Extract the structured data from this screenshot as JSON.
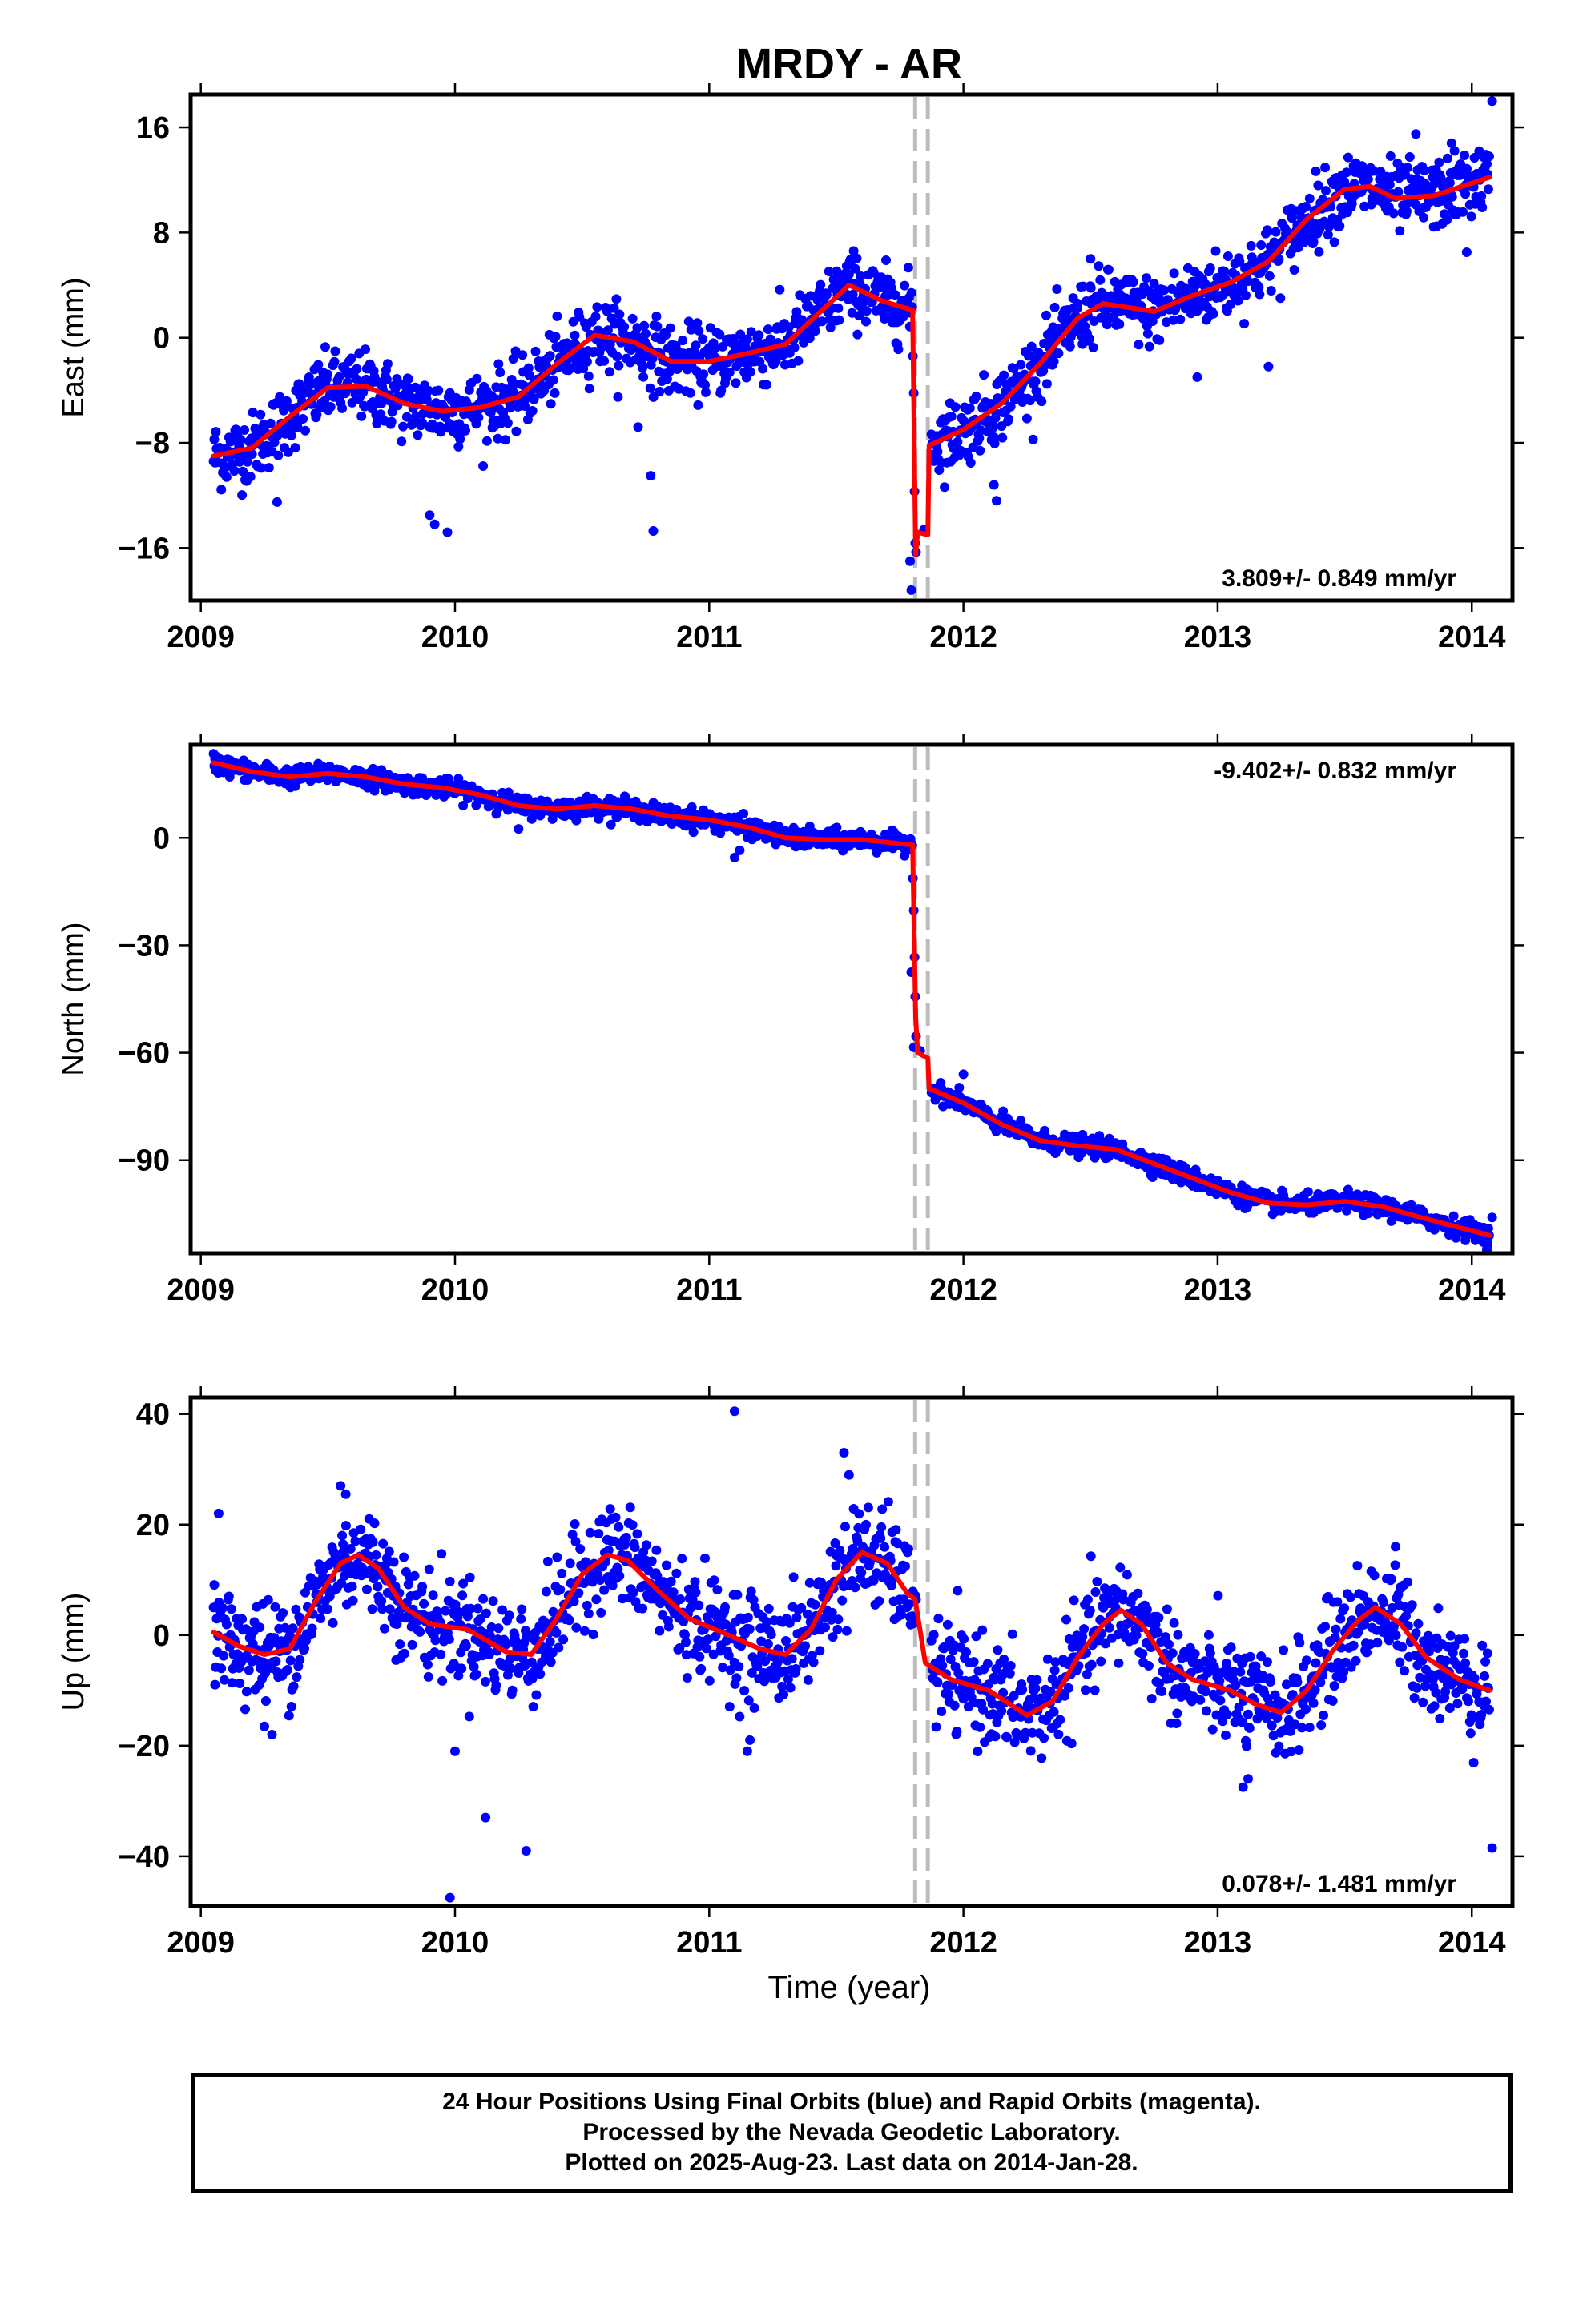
{
  "chart_data": {
    "type": "scatter",
    "title": "MRDY - AR",
    "xlabel": "Time (year)",
    "x_ticks": [
      2009,
      2010,
      2011,
      2012,
      2013,
      2014
    ],
    "xlim": [
      2008.96,
      2014.16
    ],
    "offsets": [
      2011.81,
      2011.86
    ],
    "last_data": 2014.07,
    "series_color": "#0000ff",
    "fit_color": "#ff0000",
    "offset_line_color": "#bdbdbd",
    "panels": [
      {
        "name": "East",
        "ylabel": "East (mm)",
        "ylim": [
          -20,
          18.5
        ],
        "y_ticks": [
          -16,
          -8,
          0,
          8,
          16
        ],
        "rate": "3.809+/- 0.849 mm/yr",
        "rate_position": "bottom-right",
        "noise": 1.3,
        "fit": [
          [
            2009.05,
            -9.0
          ],
          [
            2009.2,
            -8.4
          ],
          [
            2009.35,
            -6.0
          ],
          [
            2009.5,
            -3.8
          ],
          [
            2009.65,
            -3.7
          ],
          [
            2009.8,
            -5.0
          ],
          [
            2009.95,
            -5.6
          ],
          [
            2010.1,
            -5.3
          ],
          [
            2010.25,
            -4.5
          ],
          [
            2010.4,
            -2.0
          ],
          [
            2010.55,
            0.2
          ],
          [
            2010.7,
            -0.3
          ],
          [
            2010.85,
            -1.8
          ],
          [
            2011.0,
            -1.8
          ],
          [
            2011.15,
            -1.2
          ],
          [
            2011.3,
            -0.5
          ],
          [
            2011.45,
            2.2
          ],
          [
            2011.55,
            4.0
          ],
          [
            2011.68,
            2.8
          ],
          [
            2011.8,
            2.1
          ],
          [
            2011.812,
            -16.5
          ],
          [
            2011.82,
            -14.8
          ],
          [
            2011.86,
            -15.0
          ],
          [
            2011.865,
            -8.2
          ],
          [
            2012.0,
            -7.0
          ],
          [
            2012.15,
            -5.0
          ],
          [
            2012.3,
            -2.0
          ],
          [
            2012.45,
            1.5
          ],
          [
            2012.55,
            2.6
          ],
          [
            2012.75,
            2.0
          ],
          [
            2012.9,
            3.2
          ],
          [
            2013.05,
            4.2
          ],
          [
            2013.2,
            5.8
          ],
          [
            2013.35,
            9.0
          ],
          [
            2013.5,
            11.3
          ],
          [
            2013.6,
            11.5
          ],
          [
            2013.7,
            10.6
          ],
          [
            2013.85,
            10.8
          ],
          [
            2014.07,
            12.2
          ]
        ],
        "outliers": [
          [
            2009.3,
            -12.5
          ],
          [
            2009.9,
            -13.5
          ],
          [
            2009.92,
            -14.2
          ],
          [
            2009.97,
            -14.8
          ],
          [
            2010.77,
            -10.5
          ],
          [
            2010.78,
            -14.7
          ],
          [
            2010.72,
            -6.8
          ],
          [
            2011.79,
            -17.0
          ],
          [
            2011.795,
            -19.2
          ],
          [
            2011.845,
            -14.6
          ],
          [
            2012.12,
            -11.2
          ],
          [
            2012.13,
            -12.4
          ],
          [
            2013.2,
            -2.2
          ],
          [
            2012.92,
            -3.0
          ],
          [
            2014.08,
            18.0
          ],
          [
            2013.98,
            6.5
          ],
          [
            2013.92,
            14.8
          ],
          [
            2013.78,
            15.5
          ],
          [
            2012.5,
            6.0
          ]
        ]
      },
      {
        "name": "North",
        "ylabel": "North (mm)",
        "ylim": [
          -116,
          26
        ],
        "y_ticks": [
          -90,
          -60,
          -30,
          0
        ],
        "rate": "-9.402+/- 0.832 mm/yr",
        "rate_position": "top-right",
        "noise": 1.3,
        "fit": [
          [
            2009.05,
            21.0
          ],
          [
            2009.2,
            18.5
          ],
          [
            2009.35,
            17.0
          ],
          [
            2009.5,
            18.0
          ],
          [
            2009.65,
            17.0
          ],
          [
            2009.8,
            15.0
          ],
          [
            2009.95,
            14.0
          ],
          [
            2010.1,
            12.0
          ],
          [
            2010.25,
            9.0
          ],
          [
            2010.4,
            8.0
          ],
          [
            2010.55,
            9.0
          ],
          [
            2010.7,
            8.0
          ],
          [
            2010.85,
            6.0
          ],
          [
            2011.0,
            5.0
          ],
          [
            2011.15,
            3.0
          ],
          [
            2011.3,
            0.0
          ],
          [
            2011.45,
            -0.5
          ],
          [
            2011.6,
            -0.5
          ],
          [
            2011.8,
            -2.0
          ],
          [
            2011.812,
            -50.0
          ],
          [
            2011.82,
            -60.0
          ],
          [
            2011.86,
            -61.5
          ],
          [
            2011.865,
            -70.0
          ],
          [
            2012.0,
            -74.0
          ],
          [
            2012.15,
            -80.0
          ],
          [
            2012.3,
            -84.5
          ],
          [
            2012.45,
            -86.0
          ],
          [
            2012.6,
            -87.0
          ],
          [
            2012.75,
            -91.0
          ],
          [
            2012.9,
            -95.0
          ],
          [
            2013.05,
            -99.0
          ],
          [
            2013.2,
            -102.0
          ],
          [
            2013.35,
            -102.5
          ],
          [
            2013.5,
            -101.5
          ],
          [
            2013.65,
            -103.0
          ],
          [
            2013.8,
            -106.0
          ],
          [
            2014.07,
            -111.0
          ]
        ],
        "outliers": [
          [
            2011.795,
            -37.5
          ],
          [
            2011.805,
            -58.5
          ],
          [
            2011.83,
            -59.5
          ],
          [
            2010.25,
            2.5
          ],
          [
            2011.1,
            -5.5
          ],
          [
            2011.12,
            -3.5
          ],
          [
            2012.0,
            -66.0
          ],
          [
            2014.08,
            -106.0
          ],
          [
            2014.06,
            -114.0
          ]
        ]
      },
      {
        "name": "Up",
        "ylabel": "Up (mm)",
        "ylim": [
          -49,
          43
        ],
        "y_ticks": [
          -40,
          -20,
          0,
          20,
          40
        ],
        "rate": "0.078+/- 1.481 mm/yr",
        "rate_position": "bottom-right",
        "noise": 4.6,
        "fit": [
          [
            2009.05,
            0.5
          ],
          [
            2009.15,
            -2.0
          ],
          [
            2009.25,
            -3.5
          ],
          [
            2009.35,
            -2.5
          ],
          [
            2009.45,
            6.0
          ],
          [
            2009.55,
            13.0
          ],
          [
            2009.62,
            14.5
          ],
          [
            2009.7,
            12.0
          ],
          [
            2009.8,
            5.0
          ],
          [
            2009.9,
            2.0
          ],
          [
            2010.05,
            1.0
          ],
          [
            2010.2,
            -3.0
          ],
          [
            2010.3,
            -3.5
          ],
          [
            2010.4,
            3.0
          ],
          [
            2010.5,
            11.0
          ],
          [
            2010.6,
            14.5
          ],
          [
            2010.68,
            13.5
          ],
          [
            2010.8,
            8.0
          ],
          [
            2010.92,
            3.0
          ],
          [
            2011.05,
            0.5
          ],
          [
            2011.2,
            -2.5
          ],
          [
            2011.3,
            -3.5
          ],
          [
            2011.4,
            1.0
          ],
          [
            2011.5,
            10.0
          ],
          [
            2011.6,
            15.0
          ],
          [
            2011.7,
            13.0
          ],
          [
            2011.78,
            7.5
          ],
          [
            2011.81,
            6.5
          ],
          [
            2011.85,
            -5.0
          ],
          [
            2011.95,
            -8.0
          ],
          [
            2012.1,
            -10.0
          ],
          [
            2012.2,
            -13.0
          ],
          [
            2012.25,
            -14.5
          ],
          [
            2012.35,
            -12.0
          ],
          [
            2012.45,
            -4.0
          ],
          [
            2012.55,
            2.0
          ],
          [
            2012.62,
            4.5
          ],
          [
            2012.7,
            2.0
          ],
          [
            2012.8,
            -5.0
          ],
          [
            2012.9,
            -8.0
          ],
          [
            2013.05,
            -10.0
          ],
          [
            2013.15,
            -12.5
          ],
          [
            2013.25,
            -14.0
          ],
          [
            2013.35,
            -10.0
          ],
          [
            2013.45,
            -3.0
          ],
          [
            2013.55,
            2.5
          ],
          [
            2013.62,
            5.0
          ],
          [
            2013.72,
            2.0
          ],
          [
            2013.82,
            -4.0
          ],
          [
            2013.95,
            -8.0
          ],
          [
            2014.07,
            -10.0
          ]
        ],
        "outliers": [
          [
            2009.07,
            22.0
          ],
          [
            2009.25,
            -16.5
          ],
          [
            2009.28,
            -18.0
          ],
          [
            2009.55,
            27.0
          ],
          [
            2009.57,
            25.5
          ],
          [
            2009.98,
            -47.5
          ],
          [
            2010.0,
            -21.0
          ],
          [
            2010.12,
            -33.0
          ],
          [
            2010.28,
            -39.0
          ],
          [
            2011.1,
            40.5
          ],
          [
            2011.15,
            -21.0
          ],
          [
            2011.16,
            -19.0
          ],
          [
            2011.53,
            33.0
          ],
          [
            2011.55,
            29.0
          ],
          [
            2013.1,
            -27.5
          ],
          [
            2013.12,
            -26.0
          ],
          [
            2013.7,
            16.0
          ],
          [
            2014.08,
            -38.5
          ],
          [
            2012.0,
            -11.5
          ],
          [
            2012.47,
            -3.5
          ]
        ]
      }
    ],
    "footer_lines": [
      "24 Hour Positions Using Final Orbits (blue) and Rapid Orbits (magenta).",
      "Processed by the Nevada Geodetic Laboratory.",
      "Plotted on 2025-Aug-23. Last data on 2014-Jan-28."
    ]
  }
}
